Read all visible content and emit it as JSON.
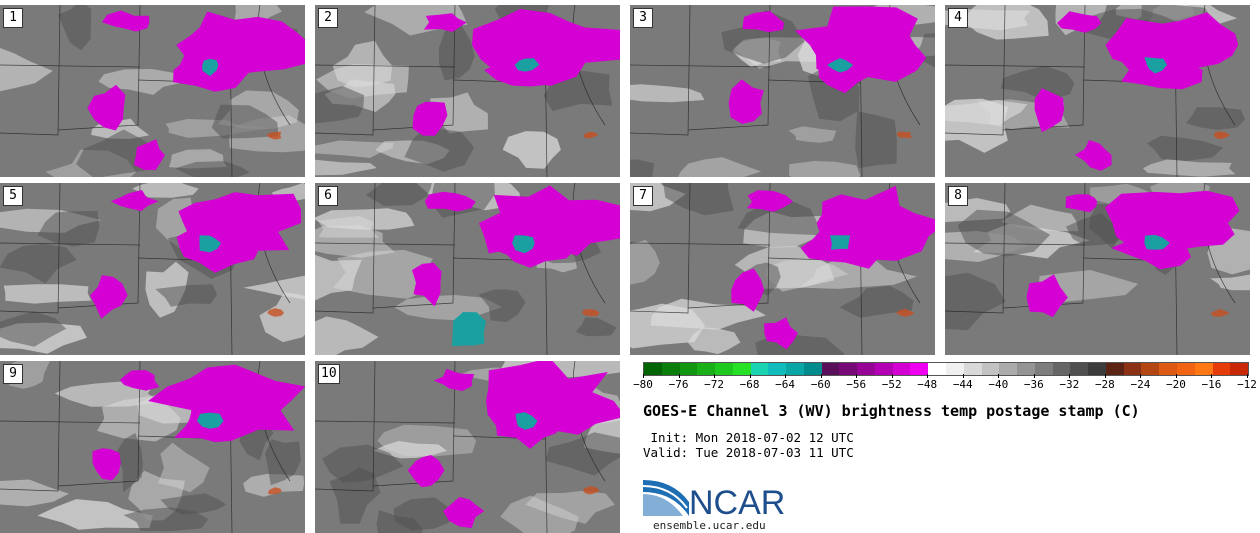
{
  "panels": [
    {
      "label": "1"
    },
    {
      "label": "2"
    },
    {
      "label": "3"
    },
    {
      "label": "4"
    },
    {
      "label": "5"
    },
    {
      "label": "6"
    },
    {
      "label": "7"
    },
    {
      "label": "8"
    },
    {
      "label": "9"
    },
    {
      "label": "10"
    }
  ],
  "colorbar": {
    "colors": [
      "#006400",
      "#0b7d0b",
      "#129612",
      "#19af19",
      "#1fc81f",
      "#26e126",
      "#1ad3b0",
      "#12bcbc",
      "#0aa5a5",
      "#008c8c",
      "#5a0f5a",
      "#780a78",
      "#960596",
      "#b400b4",
      "#d200d2",
      "#f000f0",
      "#ffffff",
      "#f0f0f0",
      "#d9d9d9",
      "#c2c2c2",
      "#ababab",
      "#949494",
      "#7d7d7d",
      "#666666",
      "#505050",
      "#3c3c3c",
      "#5a2314",
      "#8c3214",
      "#b44614",
      "#dc5a14",
      "#f06414",
      "#ff7814",
      "#e63c0a",
      "#c82806"
    ],
    "tick_labels": [
      "−80",
      "−76",
      "−72",
      "−68",
      "−64",
      "−60",
      "−56",
      "−52",
      "−48",
      "−44",
      "−40",
      "−36",
      "−32",
      "−28",
      "−24",
      "−20",
      "−16",
      "−12"
    ]
  },
  "title": "GOES-E Channel 3 (WV) brightness temp postage stamp (C)",
  "init_line": " Init: Mon 2018-07-02 12 UTC",
  "valid_line": "Valid: Tue 2018-07-03 11 UTC",
  "logo_text": "NCAR",
  "site": "ensemble.ucar.edu",
  "colors": {
    "magenta": "#d400d4",
    "teal": "#1aa0a0",
    "gray": "#7a7a7a",
    "light": "#dcdcdc",
    "warm": "#c85020"
  }
}
